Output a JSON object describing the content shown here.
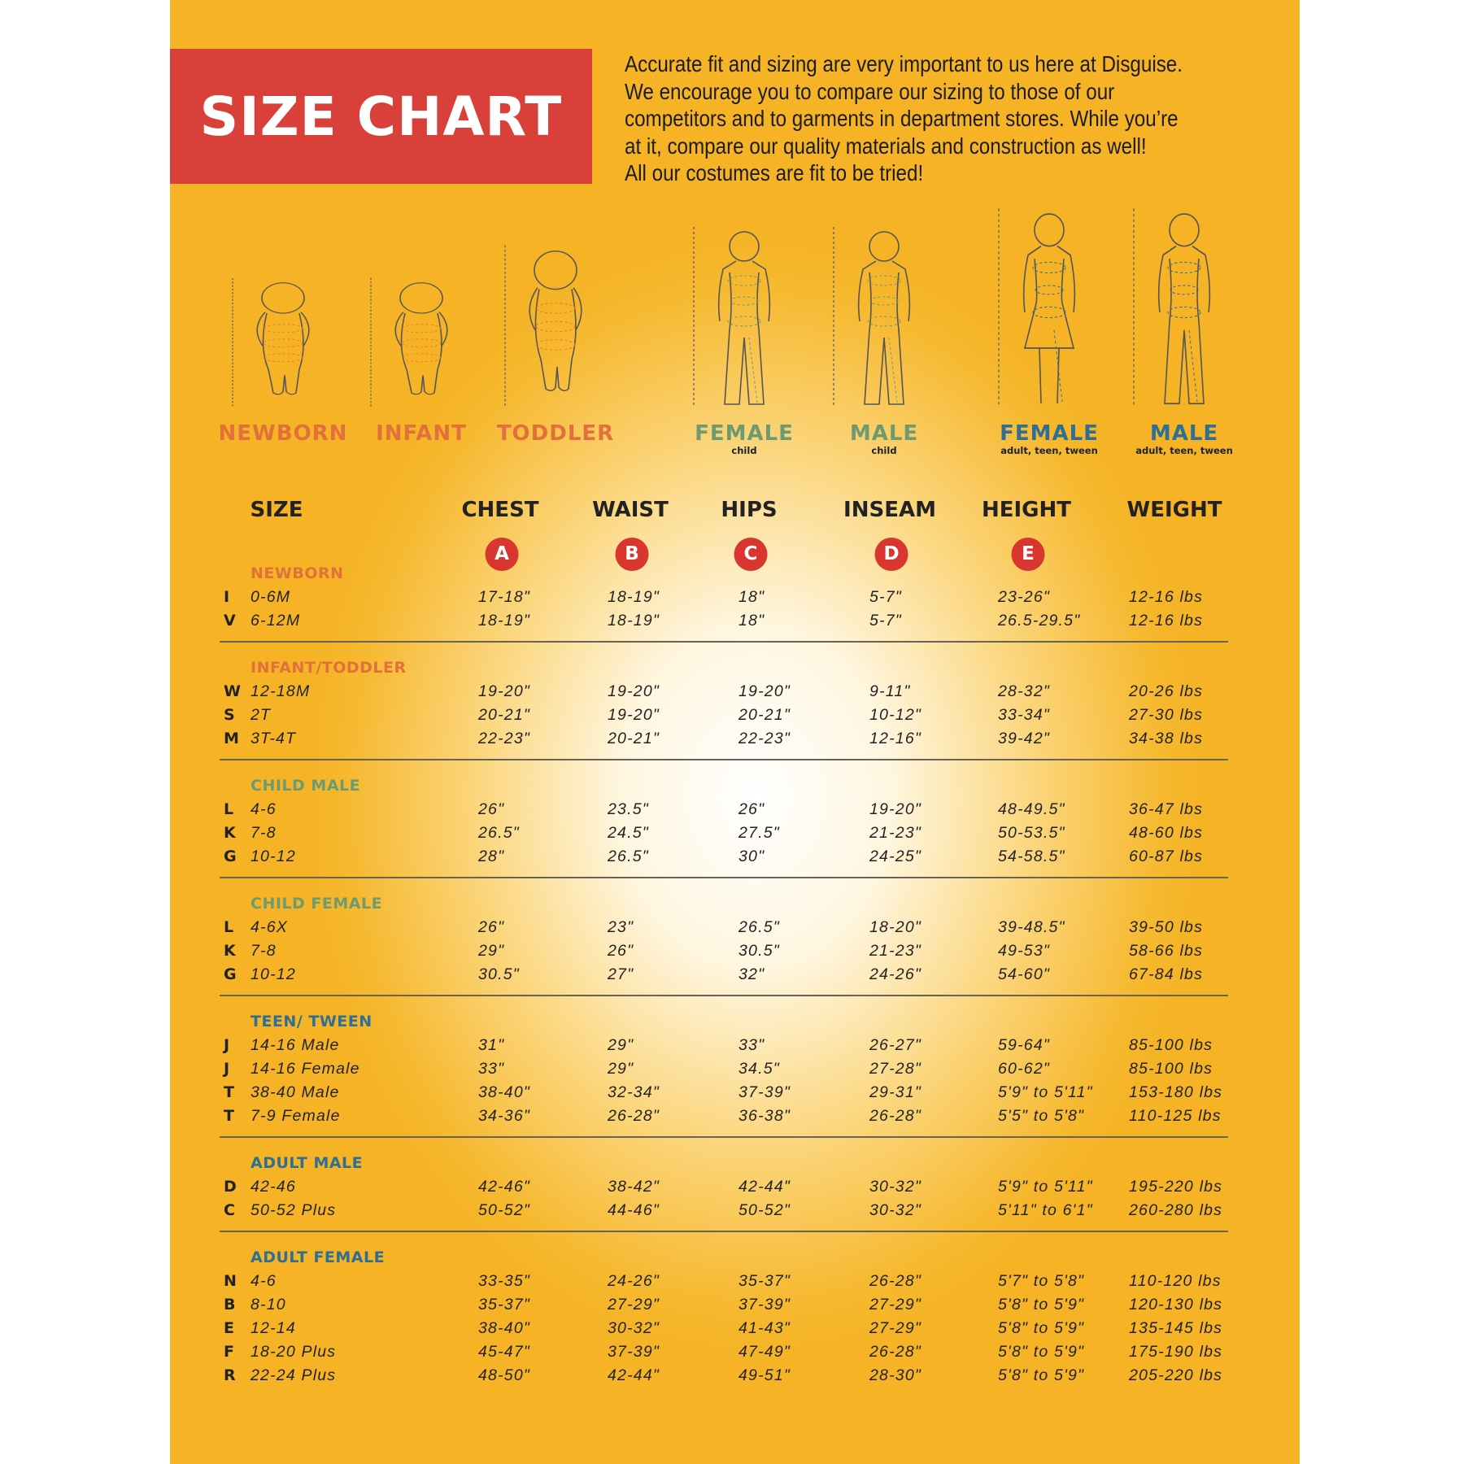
{
  "title": "SIZE CHART",
  "intro_lines": [
    "Accurate fit and sizing are very important to us here at Disguise.",
    "We encourage you to compare our sizing to those of our",
    "competitors and to garments in department stores. While you’re",
    "at it, compare our quality materials and construction as well!",
    "All our costumes are fit to be tried!"
  ],
  "colors": {
    "background": "#f6b82e",
    "title_box": "#d9403a",
    "baby": "#e2703a",
    "child": "#6e9a72",
    "adult": "#2f6f94",
    "circle": "#d8362f"
  },
  "figures": [
    {
      "label": "NEWBORN",
      "sub": "",
      "group": "baby",
      "kind": "baby"
    },
    {
      "label": "INFANT",
      "sub": "",
      "group": "baby",
      "kind": "baby"
    },
    {
      "label": "TODDLER",
      "sub": "",
      "group": "baby",
      "kind": "toddler"
    },
    {
      "label": "FEMALE",
      "sub": "child",
      "group": "child",
      "kind": "child-female"
    },
    {
      "label": "MALE",
      "sub": "child",
      "group": "child",
      "kind": "child-male"
    },
    {
      "label": "FEMALE",
      "sub": "adult, teen, tween",
      "group": "adult",
      "kind": "adult-female"
    },
    {
      "label": "MALE",
      "sub": "adult, teen, tween",
      "group": "adult",
      "kind": "adult-male"
    }
  ],
  "headers": {
    "size": "SIZE",
    "columns": [
      "CHEST",
      "WAIST",
      "HIPS",
      "INSEAM",
      "HEIGHT",
      "WEIGHT"
    ],
    "markers": [
      "A",
      "B",
      "C",
      "D",
      "E"
    ]
  },
  "sections": [
    {
      "label": "NEWBORN",
      "group": "baby",
      "rows": [
        [
          "I",
          "0-6M",
          "17-18\"",
          "18-19\"",
          "18\"",
          "5-7\"",
          "23-26\"",
          "12-16 lbs"
        ],
        [
          "V",
          "6-12M",
          "18-19\"",
          "18-19\"",
          "18\"",
          "5-7\"",
          "26.5-29.5\"",
          "12-16 lbs"
        ]
      ]
    },
    {
      "label": "INFANT/TODDLER",
      "group": "baby",
      "rows": [
        [
          "W",
          "12-18M",
          "19-20\"",
          "19-20\"",
          "19-20\"",
          "9-11\"",
          "28-32\"",
          "20-26 lbs"
        ],
        [
          "S",
          "2T",
          "20-21\"",
          "19-20\"",
          "20-21\"",
          "10-12\"",
          "33-34\"",
          "27-30 lbs"
        ],
        [
          "M",
          "3T-4T",
          "22-23\"",
          "20-21\"",
          "22-23\"",
          "12-16\"",
          "39-42\"",
          "34-38 lbs"
        ]
      ]
    },
    {
      "label": "CHILD MALE",
      "group": "child",
      "rows": [
        [
          "L",
          "4-6",
          "26\"",
          "23.5\"",
          "26\"",
          "19-20\"",
          "48-49.5\"",
          "36-47 lbs"
        ],
        [
          "K",
          "7-8",
          "26.5\"",
          "24.5\"",
          "27.5\"",
          "21-23\"",
          "50-53.5\"",
          "48-60 lbs"
        ],
        [
          "G",
          "10-12",
          "28\"",
          "26.5\"",
          "30\"",
          "24-25\"",
          "54-58.5\"",
          "60-87 lbs"
        ]
      ]
    },
    {
      "label": "CHILD FEMALE",
      "group": "child",
      "rows": [
        [
          "L",
          "4-6X",
          "26\"",
          "23\"",
          "26.5\"",
          "18-20\"",
          "39-48.5\"",
          "39-50 lbs"
        ],
        [
          "K",
          "7-8",
          "29\"",
          "26\"",
          "30.5\"",
          "21-23\"",
          "49-53\"",
          "58-66 lbs"
        ],
        [
          "G",
          "10-12",
          "30.5\"",
          "27\"",
          "32\"",
          "24-26\"",
          "54-60\"",
          "67-84 lbs"
        ]
      ]
    },
    {
      "label": "TEEN/ TWEEN",
      "group": "adult",
      "rows": [
        [
          "J",
          "14-16 Male",
          "31\"",
          "29\"",
          "33\"",
          "26-27\"",
          "59-64\"",
          "85-100 lbs"
        ],
        [
          "J",
          "14-16 Female",
          "33\"",
          "29\"",
          "34.5\"",
          "27-28\"",
          "60-62\"",
          "85-100 lbs"
        ],
        [
          "T",
          "38-40 Male",
          "38-40\"",
          "32-34\"",
          "37-39\"",
          "29-31\"",
          "5'9\" to 5'11\"",
          "153-180 lbs"
        ],
        [
          "T",
          "7-9 Female",
          "34-36\"",
          "26-28\"",
          "36-38\"",
          "26-28\"",
          "5'5\" to 5'8\"",
          "110-125 lbs"
        ]
      ]
    },
    {
      "label": "ADULT MALE",
      "group": "adult",
      "rows": [
        [
          "D",
          "42-46",
          "42-46\"",
          "38-42\"",
          "42-44\"",
          "30-32\"",
          "5'9\" to 5'11\"",
          "195-220 lbs"
        ],
        [
          "C",
          "50-52 Plus",
          "50-52\"",
          "44-46\"",
          "50-52\"",
          "30-32\"",
          "5'11\" to 6'1\"",
          "260-280 lbs"
        ]
      ]
    },
    {
      "label": "ADULT FEMALE",
      "group": "adult",
      "rows": [
        [
          "N",
          "4-6",
          "33-35\"",
          "24-26\"",
          "35-37\"",
          "26-28\"",
          "5'7\" to 5'8\"",
          "110-120 lbs"
        ],
        [
          "B",
          "8-10",
          "35-37\"",
          "27-29\"",
          "37-39\"",
          "27-29\"",
          "5'8\" to 5'9\"",
          "120-130 lbs"
        ],
        [
          "E",
          "12-14",
          "38-40\"",
          "30-32\"",
          "41-43\"",
          "27-29\"",
          "5'8\" to 5'9\"",
          "135-145 lbs"
        ],
        [
          "F",
          "18-20 Plus",
          "45-47\"",
          "37-39\"",
          "47-49\"",
          "26-28\"",
          "5'8\" to 5'9\"",
          "175-190 lbs"
        ],
        [
          "R",
          "22-24 Plus",
          "48-50\"",
          "42-44\"",
          "49-51\"",
          "28-30\"",
          "5'8\" to 5'9\"",
          "205-220 lbs"
        ]
      ]
    }
  ]
}
